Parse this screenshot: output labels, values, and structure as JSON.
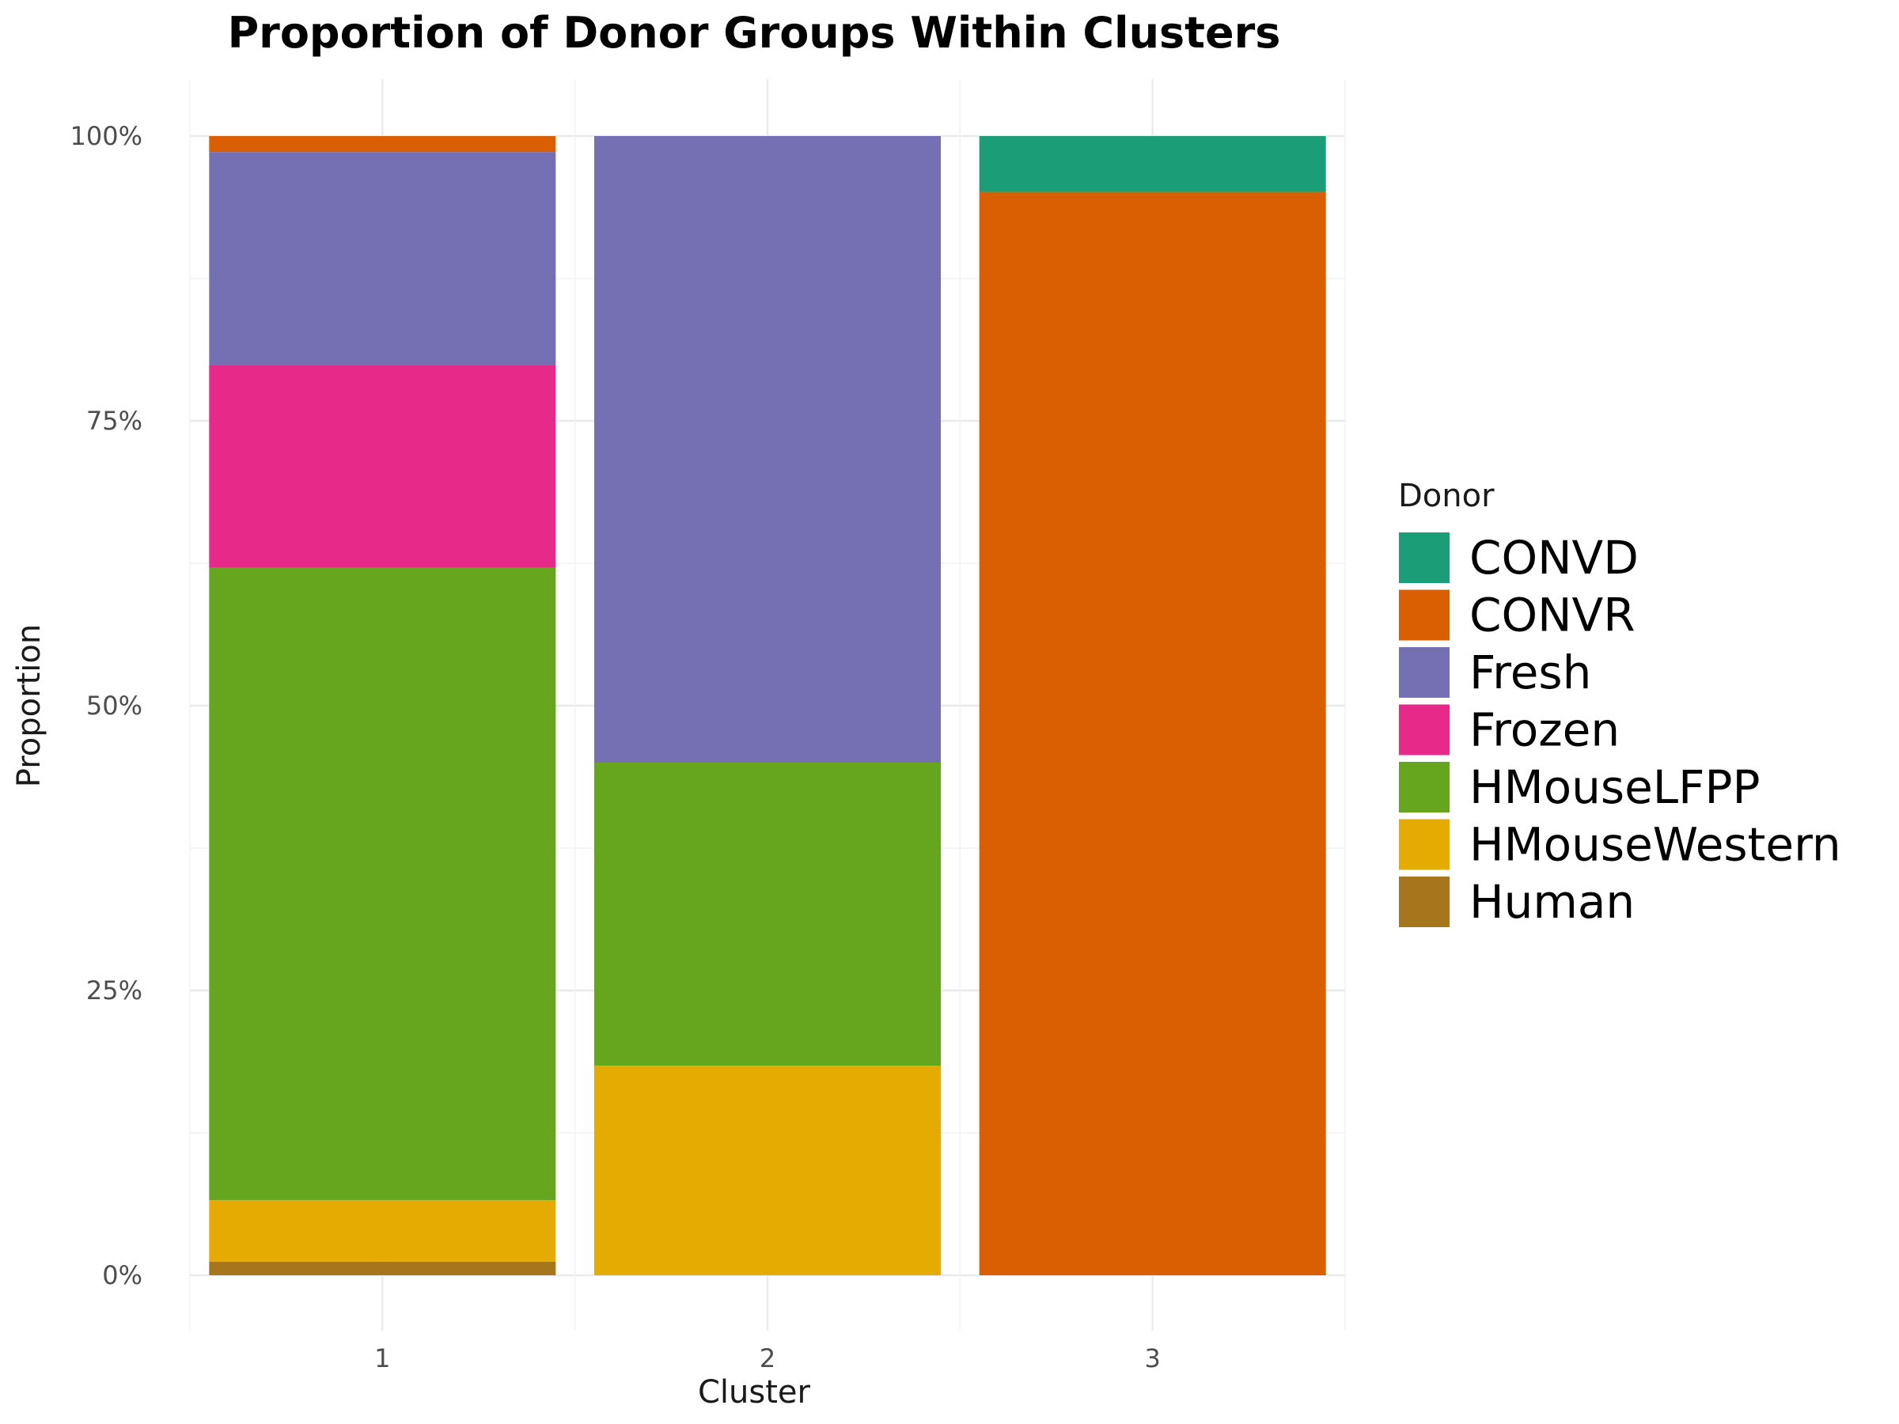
{
  "chart_data": {
    "type": "bar",
    "stacked": true,
    "title": "Proportion of Donor Groups Within Clusters",
    "xlabel": "Cluster",
    "ylabel": "Proportion",
    "categories": [
      "1",
      "2",
      "3"
    ],
    "ylim": [
      0,
      1
    ],
    "yticks": [
      0,
      0.25,
      0.5,
      0.75,
      1.0
    ],
    "ytick_labels": [
      "0%",
      "25%",
      "50%",
      "75%",
      "100%"
    ],
    "grid": true,
    "legend": {
      "title": "Donor",
      "position": "right"
    },
    "series": [
      {
        "name": "Human",
        "color": "#A6761D",
        "values": [
          0.012,
          0.0,
          0.0
        ]
      },
      {
        "name": "HMouseWestern",
        "color": "#E6AB02",
        "values": [
          0.054,
          0.184,
          0.0
        ]
      },
      {
        "name": "HMouseLFPP",
        "color": "#66A61E",
        "values": [
          0.555,
          0.266,
          0.0
        ]
      },
      {
        "name": "Frozen",
        "color": "#E7298A",
        "values": [
          0.178,
          0.0,
          0.0
        ]
      },
      {
        "name": "Fresh",
        "color": "#7570B3",
        "values": [
          0.187,
          0.55,
          0.0
        ]
      },
      {
        "name": "CONVR",
        "color": "#D95F02",
        "values": [
          0.014,
          0.0,
          0.951
        ]
      },
      {
        "name": "CONVD",
        "color": "#1B9E77",
        "values": [
          0.0,
          0.0,
          0.049
        ]
      }
    ],
    "legend_order": [
      "CONVD",
      "CONVR",
      "Fresh",
      "Frozen",
      "HMouseLFPP",
      "HMouseWestern",
      "Human"
    ]
  }
}
